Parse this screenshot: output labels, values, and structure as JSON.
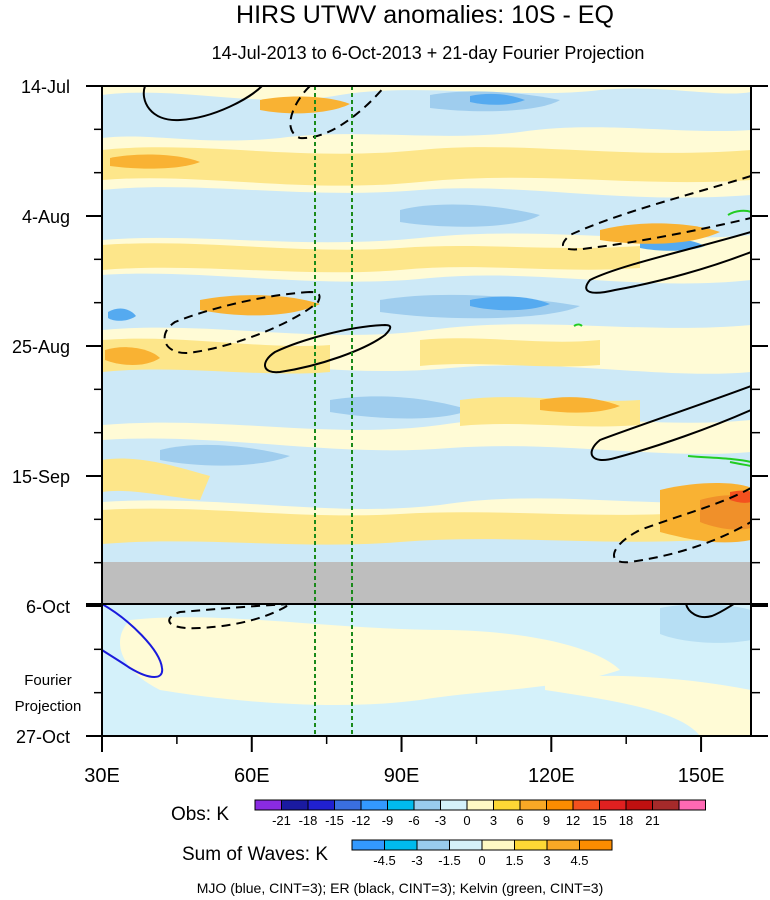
{
  "chart_data": {
    "type": "heatmap",
    "title": "HIRS UTWV anomalies: 10S - EQ",
    "subtitle": "14-Jul-2013 to 6-Oct-2013 + 21-day Fourier Projection",
    "xlabel": "",
    "ylabel": "",
    "x_ticks": [
      {
        "value": 30,
        "label": "30E"
      },
      {
        "value": 60,
        "label": "60E"
      },
      {
        "value": 90,
        "label": "90E"
      },
      {
        "value": 120,
        "label": "120E"
      },
      {
        "value": 150,
        "label": "150E"
      }
    ],
    "xlim": [
      30,
      160
    ],
    "y_ticks": [
      {
        "value": 0,
        "label": "14-Jul"
      },
      {
        "value": 21,
        "label": "4-Aug"
      },
      {
        "value": 42,
        "label": "25-Aug"
      },
      {
        "value": 63,
        "label": "15-Sep"
      },
      {
        "value": 84,
        "label": "6-Oct"
      },
      {
        "value": 105,
        "label": "27-Oct"
      }
    ],
    "ylim_days": [
      0,
      105
    ],
    "fourier_label_line1": "Fourier",
    "fourier_label_line2": "Projection",
    "obs_missing_days": [
      77,
      84
    ],
    "reference_lines_lon": [
      72.5,
      80
    ],
    "obs_colorbar": {
      "label": "Obs: K",
      "levels": [
        "-21",
        "-18",
        "-15",
        "-12",
        "-9",
        "-6",
        "-3",
        "0",
        "3",
        "6",
        "9",
        "12",
        "15",
        "18",
        "21"
      ],
      "colors": [
        "#8a2be2",
        "#1a1aa0",
        "#2020d0",
        "#3a6fe0",
        "#3399ff",
        "#00bbee",
        "#99ccee",
        "#d4f1fa",
        "#fff9c4",
        "#fdd835",
        "#f9a825",
        "#fb8c00",
        "#f4511e",
        "#e02020",
        "#c01010",
        "#a52a2a",
        "#ff69b4"
      ]
    },
    "waves_colorbar": {
      "label": "Sum of Waves: K",
      "levels": [
        "-4.5",
        "-3",
        "-1.5",
        "0",
        "1.5",
        "3",
        "4.5"
      ],
      "colors": [
        "#3399ff",
        "#00bbee",
        "#99ccee",
        "#d4f1fa",
        "#fff9c4",
        "#fdd835",
        "#f9a825",
        "#fb8c00"
      ]
    },
    "footer": "MJO (blue, CINT=3); ER (black, CINT=3); Kelvin (green, CINT=3)",
    "colors": {
      "mjo": "#1a1adc",
      "er": "#000000",
      "kelvin": "#22cc22",
      "reference": "#1a8a1a",
      "missing": "#bebebe"
    }
  }
}
